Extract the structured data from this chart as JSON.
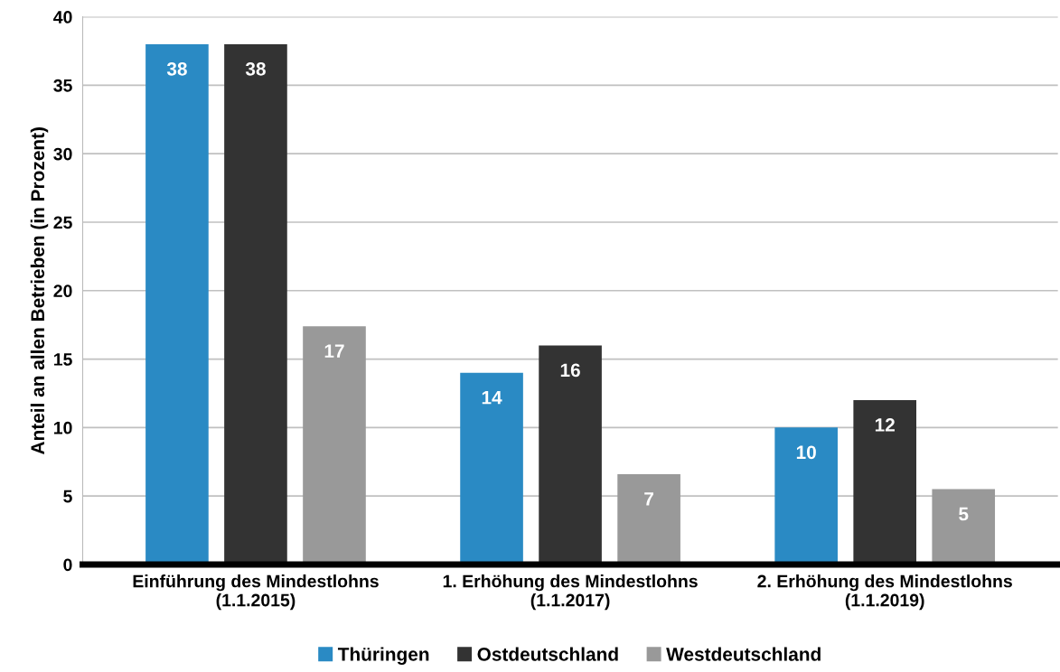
{
  "chart_data": {
    "type": "bar",
    "ylabel": "Anteil an allen Betrieben (in Prozent)",
    "categories": [
      "Einführung des Mindestlohns\n(1.1.2015)",
      "1. Erhöhung des Mindestlohns\n(1.1.2017)",
      "2. Erhöhung des Mindestlohns\n(1.1.2019)"
    ],
    "series": [
      {
        "name": "Thüringen",
        "color": "#2a8ac4",
        "values": [
          38,
          14,
          10
        ],
        "value_labels": [
          "38",
          "14",
          "10"
        ]
      },
      {
        "name": "Ostdeutschland",
        "color": "#333333",
        "values": [
          38,
          16,
          12
        ],
        "value_labels": [
          "38",
          "16",
          "12"
        ]
      },
      {
        "name": "Westdeutschland",
        "color": "#999999",
        "values": [
          17.4,
          6.6,
          5.5
        ],
        "value_labels": [
          "17",
          "7",
          "5"
        ]
      }
    ],
    "ylim": [
      0,
      40
    ],
    "yticks": [
      0,
      5,
      10,
      15,
      20,
      25,
      30,
      35,
      40
    ],
    "grid": "y",
    "legend": "bottom"
  }
}
